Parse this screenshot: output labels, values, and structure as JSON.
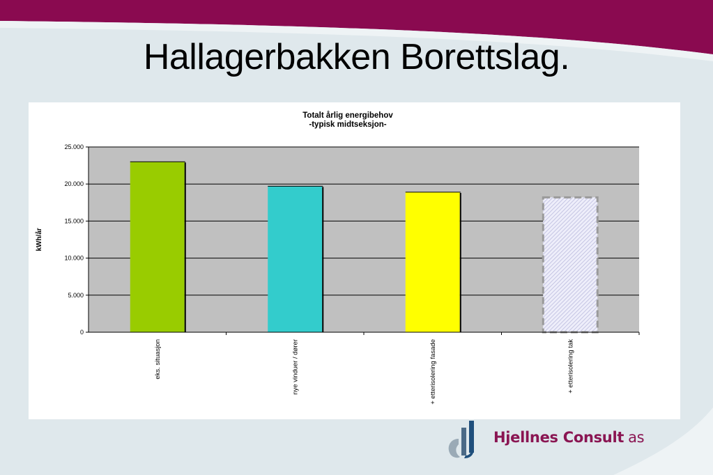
{
  "slide": {
    "title": "Hallagerbakken Borettslag.",
    "colors": {
      "banner": "#8a0a50",
      "background": "#dfe8ec"
    }
  },
  "logo": {
    "name": "Hjellnes Consult",
    "suffix": "as",
    "icon": "hjellnes-logo-mark",
    "color": "#8a1552"
  },
  "chart_data": {
    "type": "bar",
    "title": "Totalt årlig energibehov",
    "subtitle": "-typisk midtseksjon-",
    "ylabel": "kWh/år",
    "xlabel": "",
    "ylim": [
      0,
      25000
    ],
    "yticks": [
      0,
      5000,
      10000,
      15000,
      20000,
      25000
    ],
    "ytick_labels": [
      "0",
      "5.000",
      "10.000",
      "15.000",
      "20.000",
      "25.000"
    ],
    "grid": true,
    "plot_background": "#c0c0c0",
    "categories": [
      "eks. situasjon",
      "nye vinduer / dører",
      "+ etterisolering fasade",
      "+ etterisolering  tak"
    ],
    "values": [
      23000,
      19700,
      18900,
      18200
    ],
    "bar_colors": [
      "#99cc00",
      "#33cccc",
      "#ffff00",
      "#dcdcf4"
    ],
    "bar_styles": [
      "solid",
      "solid",
      "solid",
      "dashed-hatched"
    ]
  }
}
